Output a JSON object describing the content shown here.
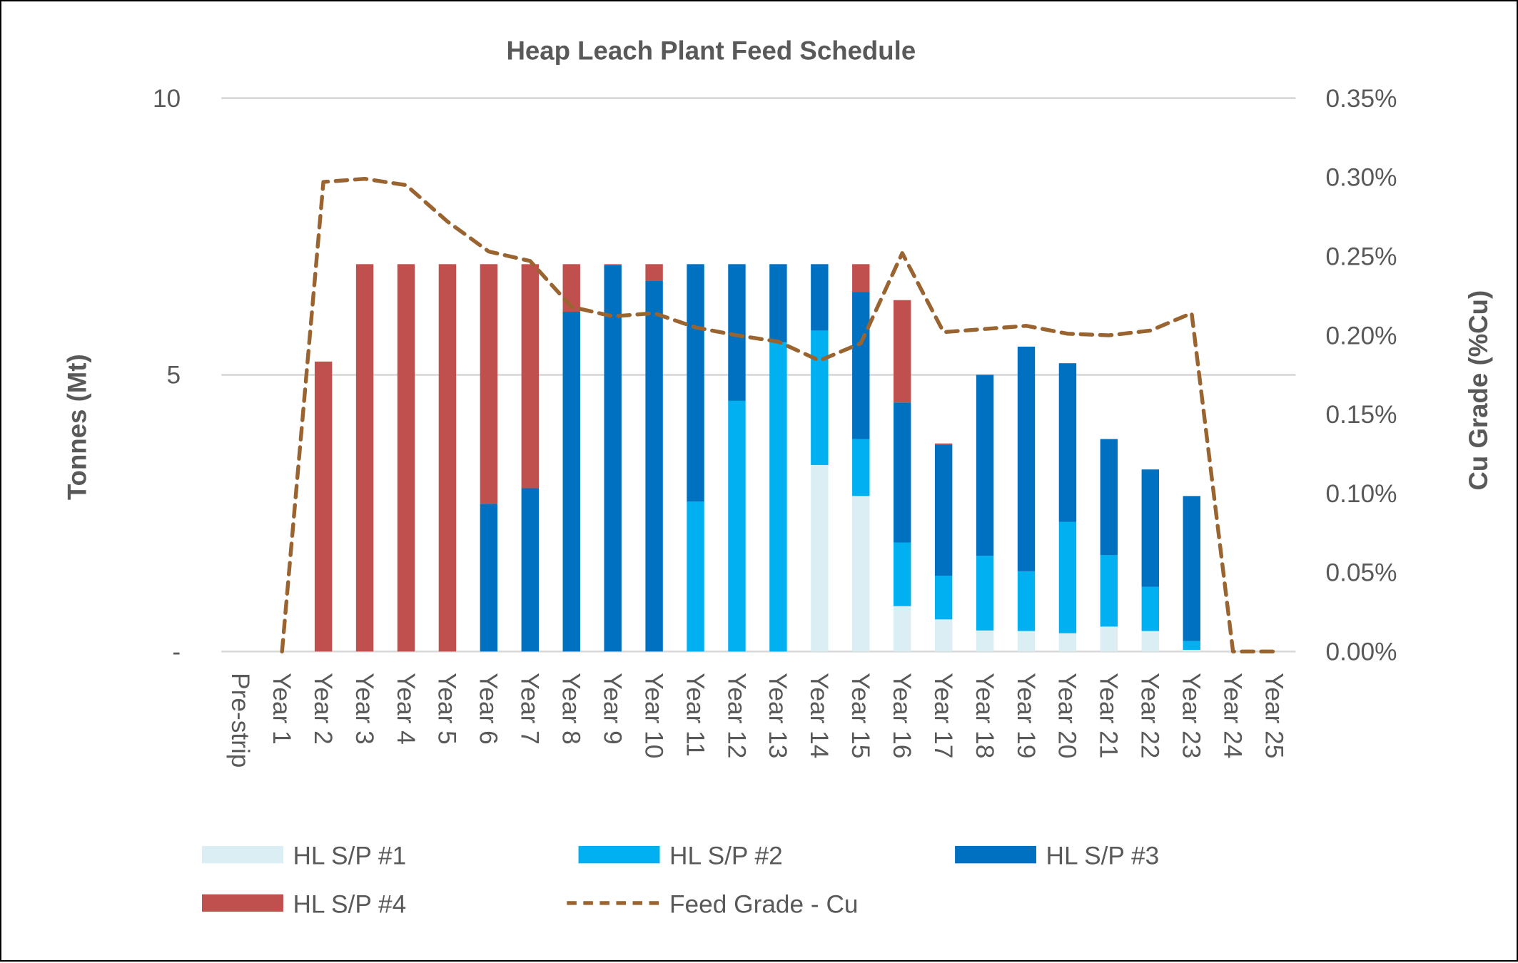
{
  "chart_data": {
    "type": "bar",
    "stacked": true,
    "title": "Heap Leach Plant Feed Schedule",
    "ylabel": "Tonnes (Mt)",
    "y2label": "Cu Grade (%Cu)",
    "ylim": [
      0,
      10
    ],
    "y2lim": [
      0,
      0.35
    ],
    "yticks": [
      "-",
      "5",
      "10"
    ],
    "ytick_values": [
      0,
      5,
      10
    ],
    "y2ticks": [
      "0.00%",
      "0.05%",
      "0.10%",
      "0.15%",
      "0.20%",
      "0.25%",
      "0.30%",
      "0.35%"
    ],
    "y2tick_values": [
      0,
      0.05,
      0.1,
      0.15,
      0.2,
      0.25,
      0.3,
      0.35
    ],
    "grid": true,
    "legend": "bottom",
    "categories": [
      "Pre-strip",
      "Year 1",
      "Year 2",
      "Year 3",
      "Year 4",
      "Year 5",
      "Year 6",
      "Year 7",
      "Year 8",
      "Year 9",
      "Year 10",
      "Year 11",
      "Year 12",
      "Year 13",
      "Year 14",
      "Year 15",
      "Year 16",
      "Year 17",
      "Year 18",
      "Year 19",
      "Year 20",
      "Year 21",
      "Year 22",
      "Year 23",
      "Year 24",
      "Year 25"
    ],
    "series": [
      {
        "name": "HL S/P #1",
        "type": "bar",
        "color": "#DAEEF3",
        "values": [
          0,
          0,
          0,
          0,
          0,
          0,
          0,
          0,
          0,
          0,
          0,
          0,
          0,
          0,
          3.37,
          2.81,
          0.82,
          0.58,
          0.38,
          0.37,
          0.33,
          0.45,
          0.37,
          0.03,
          0,
          0
        ]
      },
      {
        "name": "HL S/P #2",
        "type": "bar",
        "color": "#00B0F0",
        "values": [
          0,
          0,
          0,
          0,
          0,
          0,
          0,
          0,
          0,
          0,
          0,
          2.71,
          4.53,
          5.59,
          2.43,
          1.03,
          1.15,
          0.79,
          1.35,
          1.08,
          2.01,
          1.29,
          0.8,
          0.16,
          0,
          0
        ]
      },
      {
        "name": "HL S/P #3",
        "type": "bar",
        "color": "#0070C0",
        "values": [
          0,
          0,
          0,
          0,
          0,
          0,
          2.67,
          2.95,
          6.14,
          6.98,
          6.7,
          4.29,
          2.47,
          1.41,
          1.2,
          2.66,
          2.53,
          2.36,
          3.27,
          4.06,
          2.87,
          2.1,
          2.12,
          2.62,
          0,
          0
        ]
      },
      {
        "name": "HL S/P #4",
        "type": "bar",
        "color": "#C0504D",
        "values": [
          0,
          0,
          5.24,
          7.0,
          7.0,
          7.0,
          4.33,
          4.05,
          0.86,
          0.02,
          0.3,
          0,
          0,
          0,
          0,
          0.5,
          1.85,
          0.03,
          0,
          0,
          0,
          0,
          0,
          0,
          0,
          0
        ]
      },
      {
        "name": "Feed Grade - Cu",
        "type": "line",
        "axis": "right",
        "dashed": true,
        "color": "#9A6431",
        "values": [
          null,
          0,
          0.297,
          0.299,
          0.295,
          0.272,
          0.253,
          0.247,
          0.218,
          0.212,
          0.214,
          0.205,
          0.2,
          0.196,
          0.184,
          0.195,
          0.252,
          0.202,
          0.204,
          0.206,
          0.201,
          0.2,
          0.203,
          0.214,
          0,
          0
        ]
      }
    ]
  }
}
